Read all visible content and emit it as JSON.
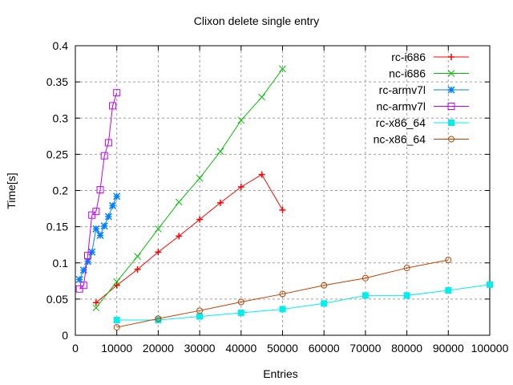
{
  "chart_data": {
    "type": "line",
    "title": "Clixon delete single entry",
    "xlabel": "Entries",
    "ylabel": "Time[s]",
    "xlim": [
      0,
      100000
    ],
    "ylim": [
      0,
      0.4
    ],
    "xticks": [
      0,
      10000,
      20000,
      30000,
      40000,
      50000,
      60000,
      70000,
      80000,
      90000,
      100000
    ],
    "yticks": [
      0,
      0.05,
      0.1,
      0.15,
      0.2,
      0.25,
      0.3,
      0.35,
      0.4
    ],
    "xtick_labels": [
      "0",
      "10000",
      "20000",
      "30000",
      "40000",
      "50000",
      "60000",
      "70000",
      "80000",
      "90000",
      "100000"
    ],
    "ytick_labels": [
      "0",
      "0.05",
      "0.1",
      "0.15",
      "0.2",
      "0.25",
      "0.3",
      "0.35",
      "0.4"
    ],
    "grid": true,
    "legend_position": "top-right",
    "series": [
      {
        "name": "rc-i686",
        "color": "#ff0000",
        "marker": "plus",
        "x": [
          5000,
          10000,
          15000,
          20000,
          25000,
          30000,
          35000,
          40000,
          45000,
          50000
        ],
        "y": [
          0.045,
          0.069,
          0.091,
          0.115,
          0.137,
          0.16,
          0.183,
          0.205,
          0.222,
          0.173
        ]
      },
      {
        "name": "nc-i686",
        "color": "#00c000",
        "marker": "cross",
        "x": [
          5000,
          10000,
          15000,
          20000,
          25000,
          30000,
          35000,
          40000,
          45000,
          50000
        ],
        "y": [
          0.038,
          0.074,
          0.109,
          0.147,
          0.184,
          0.217,
          0.254,
          0.297,
          0.329,
          0.368
        ]
      },
      {
        "name": "rc-armv7l",
        "color": "#0080ff",
        "marker": "star",
        "x": [
          1000,
          2000,
          3000,
          4000,
          5000,
          6000,
          7000,
          8000,
          9000,
          10000
        ],
        "y": [
          0.077,
          0.09,
          0.102,
          0.115,
          0.147,
          0.138,
          0.151,
          0.164,
          0.179,
          0.192
        ]
      },
      {
        "name": "nc-armv7l",
        "color": "#c000ff",
        "marker": "open-square",
        "x": [
          1000,
          2000,
          3000,
          4000,
          5000,
          6000,
          7000,
          8000,
          9000,
          10000
        ],
        "y": [
          0.064,
          0.069,
          0.11,
          0.166,
          0.171,
          0.201,
          0.248,
          0.266,
          0.317,
          0.335
        ]
      },
      {
        "name": "rc-x86_64",
        "color": "#00eeee",
        "marker": "filled-square",
        "x": [
          10000,
          20000,
          30000,
          40000,
          50000,
          60000,
          70000,
          80000,
          90000,
          100000
        ],
        "y": [
          0.021,
          0.021,
          0.026,
          0.031,
          0.036,
          0.044,
          0.055,
          0.055,
          0.062,
          0.07
        ]
      },
      {
        "name": "nc-x86_64",
        "color": "#c04000",
        "marker": "open-circle",
        "x": [
          10000,
          20000,
          30000,
          40000,
          50000,
          60000,
          70000,
          80000,
          90000
        ],
        "y": [
          0.011,
          0.023,
          0.034,
          0.046,
          0.057,
          0.069,
          0.079,
          0.093,
          0.104
        ]
      }
    ]
  }
}
